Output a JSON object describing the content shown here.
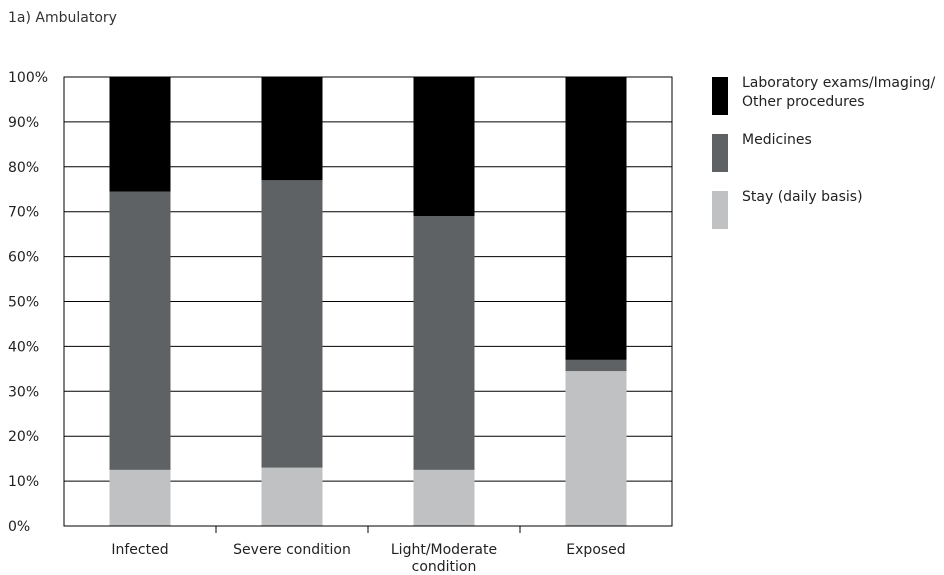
{
  "title": "1a) Ambulatory",
  "chart_data": {
    "type": "bar",
    "stacked": true,
    "title": "1a) Ambulatory",
    "categories": [
      "Infected",
      "Severe condition",
      "Light/Moderate condition",
      "Exposed"
    ],
    "series": [
      {
        "name": "Stay (daily basis)",
        "color": "#c0c1c3",
        "values": [
          12.5,
          13,
          12.5,
          34.5
        ]
      },
      {
        "name": "Medicines",
        "color": "#5f6264",
        "values": [
          62,
          64,
          56.5,
          2.5
        ]
      },
      {
        "name": "Laboratory exams/Imaging/ Other procedures",
        "color": "#000000",
        "values": [
          25.5,
          23,
          31,
          63
        ]
      }
    ],
    "yticks": [
      "0%",
      "10%",
      "20%",
      "30%",
      "40%",
      "50%",
      "60%",
      "70%",
      "80%",
      "90%",
      "100%"
    ],
    "ylim": [
      0,
      100
    ],
    "grid": true,
    "legend_position": "right"
  }
}
